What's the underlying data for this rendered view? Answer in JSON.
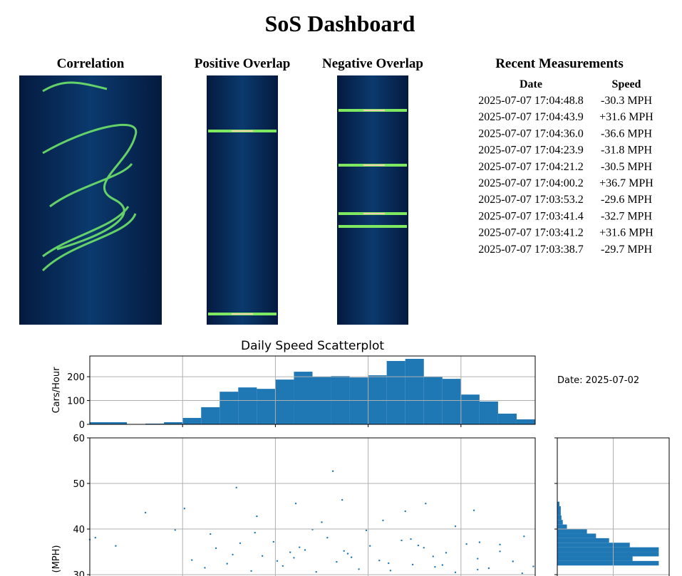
{
  "header": {
    "title": "SoS Dashboard"
  },
  "images": [
    {
      "title": "Correlation"
    },
    {
      "title": "Positive Overlap"
    },
    {
      "title": "Negative Overlap"
    }
  ],
  "table": {
    "title": "Recent Measurements",
    "columns": [
      "Date",
      "Speed"
    ],
    "rows": [
      [
        "2025-07-07 17:04:48.8",
        "-30.3 MPH"
      ],
      [
        "2025-07-07 17:04:43.9",
        "+31.6 MPH"
      ],
      [
        "2025-07-07 17:04:36.0",
        "-36.6 MPH"
      ],
      [
        "2025-07-07 17:04:23.9",
        "-31.8 MPH"
      ],
      [
        "2025-07-07 17:04:21.2",
        "-30.5 MPH"
      ],
      [
        "2025-07-07 17:04:00.2",
        "+36.7 MPH"
      ],
      [
        "2025-07-07 17:03:53.2",
        "-29.6 MPH"
      ],
      [
        "2025-07-07 17:03:41.4",
        "-32.7 MPH"
      ],
      [
        "2025-07-07 17:03:41.2",
        "+31.6 MPH"
      ],
      [
        "2025-07-07 17:03:38.7",
        "-29.7 MPH"
      ]
    ]
  },
  "date_label": "Date: 2025-07-02",
  "chart_data": [
    {
      "type": "histogram",
      "title": "Daily Speed Scatterplot",
      "ylabel": "Cars/Hour",
      "color": "#1f77b4",
      "bins": [
        0,
        1,
        2,
        3,
        4,
        5,
        6,
        7,
        8,
        9,
        10,
        11,
        12,
        13,
        14,
        15,
        16,
        17,
        18,
        19,
        20,
        21,
        22,
        23,
        24
      ],
      "values": [
        9,
        9,
        0,
        3,
        9,
        27,
        72,
        137,
        155,
        149,
        188,
        221,
        200,
        203,
        197,
        206,
        266,
        275,
        200,
        191,
        125,
        96,
        45,
        21
      ],
      "xlim": [
        0,
        24
      ],
      "xticks": [
        5,
        10,
        15,
        20
      ],
      "xtick_labels": false,
      "ylim": [
        0,
        287
      ],
      "yticks": [
        0,
        100,
        200
      ],
      "grid": true
    },
    {
      "type": "scatter",
      "ylabel": "(MPH)",
      "color": "#1f77b4",
      "x": [
        0.0,
        0.3,
        1.4,
        3.0,
        4.6,
        5.1,
        7.9,
        13.1,
        13.6,
        11.1,
        18.1,
        20.7,
        17.0,
        5.5,
        6.2,
        6.8,
        7.4,
        8.1,
        8.7,
        9.3,
        9.9,
        10.4,
        11.0,
        11.6,
        12.2,
        12.8,
        13.3,
        13.9,
        14.5,
        15.1,
        15.6,
        16.2,
        16.8,
        17.4,
        18.0,
        18.6,
        19.2,
        19.7,
        20.3,
        20.9,
        21.5,
        22.1,
        22.8,
        23.4,
        23.9,
        6.5,
        7.7,
        8.9,
        10.1,
        11.3,
        12.5,
        13.7,
        14.9,
        16.1,
        17.3,
        18.5,
        19.7,
        20.9,
        22.1,
        23.3,
        9.0,
        10.8,
        12.0,
        14.1,
        15.8,
        17.7,
        19.0,
        21.0
      ],
      "values": [
        37.7,
        38.1,
        36.3,
        43.6,
        39.8,
        44.5,
        49.1,
        52.7,
        46.4,
        45.6,
        45.6,
        44.1,
        43.9,
        33.2,
        31.5,
        35.8,
        32.4,
        36.9,
        30.8,
        34.1,
        37.2,
        31.9,
        33.7,
        35.4,
        30.6,
        38.1,
        32.8,
        34.6,
        31.2,
        36.3,
        33.1,
        30.9,
        37.5,
        32.2,
        35.9,
        31.7,
        34.8,
        30.5,
        36.7,
        33.5,
        31.4,
        35.1,
        32.9,
        38.4,
        31.8,
        38.9,
        34.4,
        39.2,
        33.0,
        36.0,
        41.5,
        35.2,
        39.7,
        32.5,
        37.8,
        34.0,
        40.6,
        31.1,
        36.6,
        30.3,
        42.8,
        34.9,
        39.9,
        33.8,
        41.9,
        36.4,
        32.1,
        37.1
      ],
      "xlim": [
        0,
        24
      ],
      "xticks": [
        5,
        10,
        15,
        20
      ],
      "xtick_labels": false,
      "ylim": [
        29.7,
        60
      ],
      "yticks": [
        30,
        40,
        50,
        60
      ],
      "grid": true
    },
    {
      "type": "histogram",
      "orientation": "horizontal",
      "color": "#1f77b4",
      "bins": [
        32,
        33,
        34,
        35,
        36,
        37,
        38,
        39,
        40,
        41,
        42,
        43,
        44,
        45,
        46
      ],
      "values": [
        907,
        673,
        907,
        907,
        648,
        463,
        346,
        265,
        86,
        49,
        37,
        31,
        31,
        19
      ],
      "xlim": [
        0,
        1000
      ],
      "xticks": [
        500
      ],
      "xtick_labels": false,
      "ylim": [
        29.7,
        60
      ],
      "yticks": [
        30,
        40,
        50,
        60
      ],
      "ytick_labels": false,
      "grid": true
    }
  ]
}
